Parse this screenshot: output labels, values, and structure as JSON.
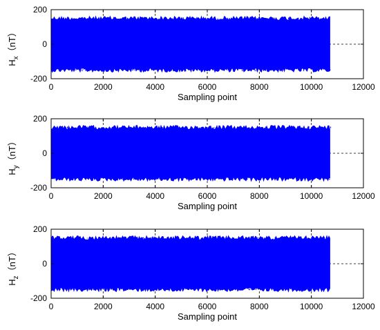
{
  "chart_data": [
    {
      "type": "line",
      "title": "",
      "xlabel": "Sampling point",
      "ylabel": {
        "main": "H",
        "sub": "x",
        "unit": "（nT）"
      },
      "xlim": [
        0,
        12000
      ],
      "ylim": [
        -200,
        200
      ],
      "xticks": [
        0,
        2000,
        4000,
        6000,
        8000,
        10000,
        12000
      ],
      "yticks": [
        -200,
        0,
        200
      ],
      "xtick_labels": [
        "0",
        "2000",
        "4000",
        "6000",
        "8000",
        "10000",
        "12000"
      ],
      "ytick_labels": [
        "-200",
        "0",
        "200"
      ],
      "grid": "dashed",
      "series": [
        {
          "color": "#0000ff",
          "x_range": [
            0,
            10750
          ],
          "envelope_upper": 150,
          "envelope_lower": -150,
          "peak_max": 162,
          "peak_min": -162
        }
      ]
    },
    {
      "type": "line",
      "title": "",
      "xlabel": "Sampling point",
      "ylabel": {
        "main": "H",
        "sub": "y",
        "unit": "（nT）"
      },
      "xlim": [
        0,
        12000
      ],
      "ylim": [
        -200,
        200
      ],
      "xticks": [
        0,
        2000,
        4000,
        6000,
        8000,
        10000,
        12000
      ],
      "yticks": [
        -200,
        0,
        200
      ],
      "xtick_labels": [
        "0",
        "2000",
        "4000",
        "6000",
        "8000",
        "10000",
        "12000"
      ],
      "ytick_labels": [
        "-200",
        "0",
        "200"
      ],
      "grid": "dashed",
      "series": [
        {
          "color": "#0000ff",
          "x_range": [
            0,
            10750
          ],
          "envelope_upper": 150,
          "envelope_lower": -150,
          "peak_max": 160,
          "peak_min": -160
        }
      ]
    },
    {
      "type": "line",
      "title": "",
      "xlabel": "Sampling point",
      "ylabel": {
        "main": "H",
        "sub": "z",
        "unit": "（nT）"
      },
      "xlim": [
        0,
        12000
      ],
      "ylim": [
        -200,
        200
      ],
      "xticks": [
        0,
        2000,
        4000,
        6000,
        8000,
        10000,
        12000
      ],
      "yticks": [
        -200,
        0,
        200
      ],
      "xtick_labels": [
        "0",
        "2000",
        "4000",
        "6000",
        "8000",
        "10000",
        "12000"
      ],
      "ytick_labels": [
        "-200",
        "0",
        "200"
      ],
      "grid": "dashed",
      "series": [
        {
          "color": "#0000ff",
          "x_range": [
            0,
            10750
          ],
          "envelope_upper": 150,
          "envelope_lower": -150,
          "peak_max": 158,
          "peak_min": -158
        }
      ]
    }
  ]
}
